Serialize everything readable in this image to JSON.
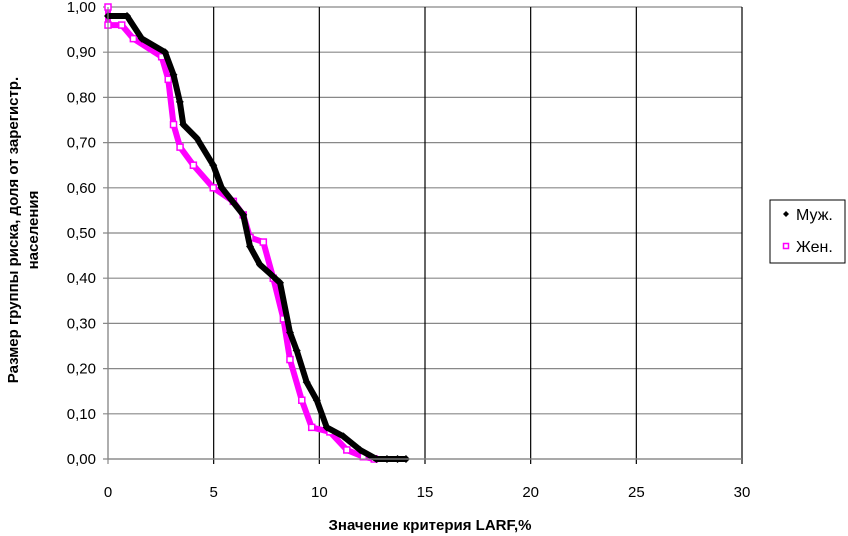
{
  "chart_data": {
    "type": "scatter",
    "title": "",
    "xlabel": "Значение критерия LARF,%",
    "ylabel_lines": [
      "Размер группы риска, доля от зарегистр.",
      "населения"
    ],
    "xlim": [
      0,
      30
    ],
    "ylim": [
      0,
      1
    ],
    "x_ticks": [
      "0",
      "5",
      "10",
      "15",
      "20",
      "25",
      "30"
    ],
    "y_ticks": [
      "0,00",
      "0,10",
      "0,20",
      "0,30",
      "0,40",
      "0,50",
      "0,60",
      "0,70",
      "0,80",
      "0,90",
      "1,00"
    ],
    "grid": true,
    "legend_position": "right",
    "series": [
      {
        "name": "Муж.",
        "color": "#000000",
        "marker": "diamond",
        "x": [
          0,
          0.9,
          1.6,
          2.7,
          3.1,
          3.4,
          3.56,
          4.2,
          4.98,
          5.38,
          6.4,
          6.72,
          7.19,
          7.67,
          8.14,
          8.61,
          8.93,
          9.4,
          9.88,
          10.35,
          11.14,
          11.93,
          12.7,
          13.2,
          13.7,
          14.1
        ],
        "y": [
          0.98,
          0.98,
          0.93,
          0.9,
          0.85,
          0.79,
          0.74,
          0.71,
          0.65,
          0.6,
          0.54,
          0.47,
          0.43,
          0.41,
          0.39,
          0.28,
          0.24,
          0.17,
          0.13,
          0.07,
          0.05,
          0.02,
          0.0,
          0.0,
          0.0,
          0.0
        ]
      },
      {
        "name": "Жен.",
        "color": "#ff00ff",
        "marker": "square-open",
        "x": [
          0,
          0,
          0.65,
          1.2,
          2.54,
          2.85,
          3.1,
          3.41,
          4.04,
          4.98,
          5.93,
          6.4,
          6.72,
          7.35,
          7.82,
          8.3,
          8.61,
          9.17,
          9.64,
          10.5,
          11.3,
          12.08,
          12.6
        ],
        "y": [
          1.0,
          0.96,
          0.96,
          0.93,
          0.89,
          0.84,
          0.74,
          0.69,
          0.65,
          0.6,
          0.57,
          0.54,
          0.49,
          0.48,
          0.4,
          0.31,
          0.22,
          0.13,
          0.07,
          0.06,
          0.02,
          0.005,
          0.0
        ]
      }
    ]
  }
}
